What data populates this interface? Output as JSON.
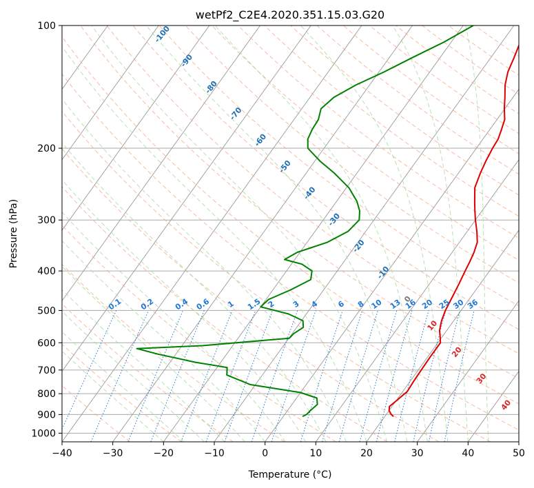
{
  "chart_data": {
    "type": "line",
    "title": "wetPf2_C2E4.2020.351.15.03.G20",
    "xlabel": "Temperature (°C)",
    "ylabel": "Pressure (hPa)",
    "xlim": [
      -40,
      50
    ],
    "ylim": [
      1050,
      100
    ],
    "y_scale": "log",
    "grid": true,
    "x_ticks": [
      -40,
      -30,
      -20,
      -10,
      0,
      10,
      20,
      30,
      40,
      50
    ],
    "x_tick_labels": [
      "−40",
      "−30",
      "−20",
      "−10",
      "0",
      "10",
      "20",
      "30",
      "40",
      "50"
    ],
    "y_ticks": [
      100,
      200,
      300,
      400,
      500,
      600,
      700,
      800,
      900,
      1000
    ],
    "y_tick_labels": [
      "100",
      "200",
      "300",
      "400",
      "500",
      "600",
      "700",
      "800",
      "900",
      "1000"
    ],
    "series": [
      {
        "color": "#dd0000",
        "points": [
          [
            -7.6,
            100
          ],
          [
            -6.4,
            110
          ],
          [
            -5.4,
            120
          ],
          [
            -4.6,
            130
          ],
          [
            -3.3,
            140
          ],
          [
            -1.6,
            150
          ],
          [
            -0.1,
            160
          ],
          [
            1.5,
            170
          ],
          [
            2.3,
            180
          ],
          [
            3.0,
            190
          ],
          [
            3.2,
            200
          ],
          [
            3.7,
            215
          ],
          [
            4.3,
            230
          ],
          [
            5.3,
            250
          ],
          [
            7.2,
            270
          ],
          [
            8.6,
            285
          ],
          [
            10.0,
            300
          ],
          [
            11.9,
            320
          ],
          [
            13.5,
            340
          ],
          [
            14.3,
            360
          ],
          [
            14.8,
            380
          ],
          [
            15.2,
            400
          ],
          [
            15.8,
            430
          ],
          [
            16.3,
            460
          ],
          [
            16.9,
            500
          ],
          [
            17.6,
            530
          ],
          [
            18.6,
            560
          ],
          [
            19.6,
            580
          ],
          [
            20.5,
            600
          ],
          [
            20.5,
            650
          ],
          [
            20.6,
            700
          ],
          [
            20.7,
            750
          ],
          [
            20.9,
            790
          ],
          [
            20.1,
            830
          ],
          [
            19.5,
            860
          ],
          [
            20.0,
            880
          ],
          [
            21.0,
            900
          ],
          [
            21.7,
            910
          ]
        ]
      },
      {
        "color": "#008000",
        "points": [
          [
            -18.0,
            100
          ],
          [
            -21.5,
            110
          ],
          [
            -25.5,
            120
          ],
          [
            -29.0,
            130
          ],
          [
            -32.7,
            140
          ],
          [
            -35.3,
            150
          ],
          [
            -36.2,
            160
          ],
          [
            -35.2,
            170
          ],
          [
            -35.0,
            180
          ],
          [
            -34.5,
            190
          ],
          [
            -33.2,
            200
          ],
          [
            -29.0,
            215
          ],
          [
            -24.5,
            230
          ],
          [
            -19.5,
            250
          ],
          [
            -16.0,
            270
          ],
          [
            -14.1,
            285
          ],
          [
            -12.9,
            300
          ],
          [
            -13.5,
            320
          ],
          [
            -16.0,
            340
          ],
          [
            -20.5,
            360
          ],
          [
            -22.0,
            375
          ],
          [
            -17.9,
            385
          ],
          [
            -15.0,
            400
          ],
          [
            -14.0,
            420
          ],
          [
            -16.5,
            445
          ],
          [
            -19.5,
            470
          ],
          [
            -20.0,
            490
          ],
          [
            -13.5,
            510
          ],
          [
            -9.7,
            530
          ],
          [
            -8.7,
            550
          ],
          [
            -9.7,
            570
          ],
          [
            -9.9,
            585
          ],
          [
            -26.0,
            610
          ],
          [
            -38.5,
            620
          ],
          [
            -33.5,
            640
          ],
          [
            -25.0,
            670
          ],
          [
            -18.0,
            690
          ],
          [
            -17.0,
            720
          ],
          [
            -11.0,
            760
          ],
          [
            0.0,
            795
          ],
          [
            4.0,
            820
          ],
          [
            5.0,
            850
          ],
          [
            4.5,
            880
          ],
          [
            4.3,
            900
          ],
          [
            3.8,
            910
          ]
        ]
      }
    ],
    "dry_adiabat_labels": [
      "-100",
      "-90",
      "-80",
      "-70",
      "-60",
      "-50",
      "-40",
      "-30",
      "-20",
      "-10",
      "0",
      "10",
      "20",
      "30",
      "40"
    ],
    "mixing_ratio_labels": [
      "0.1",
      "0.2",
      "0.4",
      "0.6",
      "1",
      "1.5",
      "2",
      "3",
      "4",
      "6",
      "8",
      "10",
      "13",
      "16",
      "20",
      "25",
      "30",
      "36"
    ],
    "isotherm_spacing_c": 10,
    "colors": {
      "temperature": "#dd0000",
      "dewpoint": "#008000",
      "dry_adiabat": "#f4a582",
      "moist_adiabat": "#a6d8a0",
      "mixing_ratio": "#1f77d4",
      "isotherm": "#999999",
      "isobar": "#aaaaaa",
      "label_blue": "#1f6fb4",
      "label_red": "#d62728"
    }
  }
}
